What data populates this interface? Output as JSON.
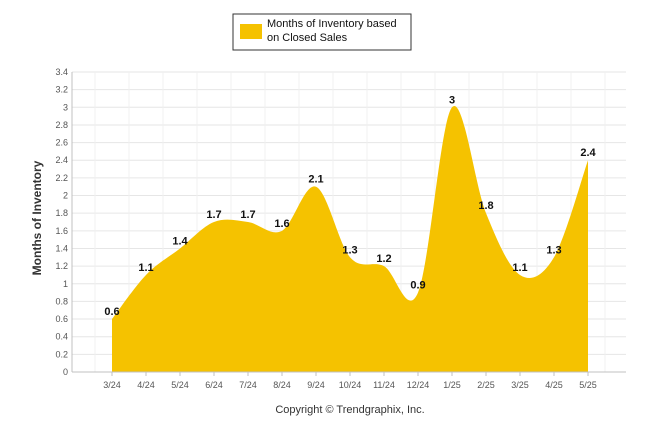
{
  "chart_data": {
    "type": "area",
    "categories": [
      "3/24",
      "4/24",
      "5/24",
      "6/24",
      "7/24",
      "8/24",
      "9/24",
      "10/24",
      "11/24",
      "12/24",
      "1/25",
      "2/25",
      "3/25",
      "4/25",
      "5/25"
    ],
    "series": [
      {
        "name": "Months of Inventory based on Closed Sales",
        "legend_lines": [
          "Months of Inventory based",
          "on Closed Sales"
        ],
        "color": "#F5C200",
        "values": [
          0.6,
          1.1,
          1.4,
          1.7,
          1.7,
          1.6,
          2.1,
          1.3,
          1.2,
          0.9,
          3,
          1.8,
          1.1,
          1.3,
          2.4
        ],
        "labels": [
          "0.6",
          "1.1",
          "1.4",
          "1.7",
          "1.7",
          "1.6",
          "2.1",
          "1.3",
          "1.2",
          "0.9",
          "3",
          "1.8",
          "1.1",
          "1.3",
          "2.4"
        ]
      }
    ],
    "ylabel": "Months of Inventory",
    "xlabel": "",
    "ylim": [
      0,
      3.4
    ],
    "yticks": [
      "0",
      "0.2",
      "0.4",
      "0.6",
      "0.8",
      "1",
      "1.2",
      "1.4",
      "1.6",
      "1.8",
      "2",
      "2.2",
      "2.4",
      "2.6",
      "2.8",
      "3",
      "3.2",
      "3.4"
    ],
    "grid": true,
    "legend_position": "top-center"
  },
  "footer": {
    "copyright": "Copyright © Trendgraphix, Inc."
  },
  "colors": {
    "area": "#F5C200",
    "grid": "#E6E6E6",
    "axis": "#C0C0C0"
  }
}
